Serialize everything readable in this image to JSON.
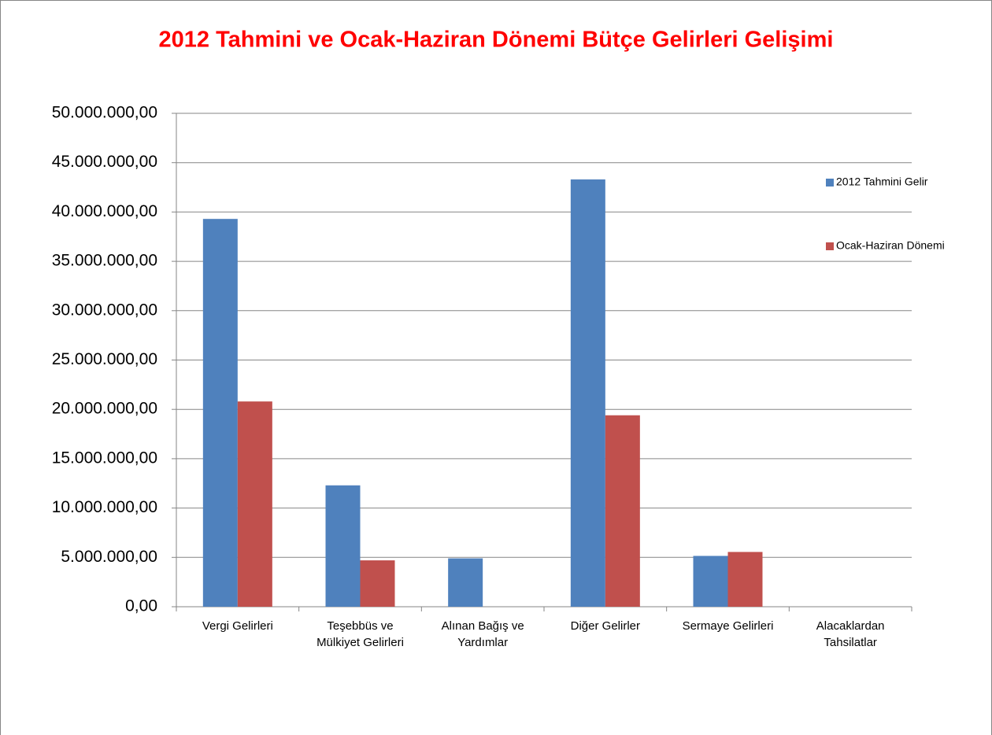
{
  "chart_data": {
    "type": "bar",
    "title": "2012 Tahmini  ve Ocak-Haziran Dönemi Bütçe Gelirleri Gelişimi",
    "categories": [
      [
        "Vergi Gelirleri"
      ],
      [
        "Teşebbüs ve",
        "Mülkiyet Gelirleri"
      ],
      [
        "Alınan Bağış ve",
        "Yardımlar"
      ],
      [
        "Diğer Gelirler"
      ],
      [
        "Sermaye Gelirleri"
      ],
      [
        "Alacaklardan",
        "Tahsilatlar"
      ]
    ],
    "series": [
      {
        "name": "2012 Tahmini Gelir",
        "color": "#4f81bd",
        "values": [
          39300000,
          12300000,
          4900000,
          43300000,
          5150000,
          0
        ]
      },
      {
        "name": "Ocak-Haziran Dönemi",
        "color": "#c0504d",
        "values": [
          20800000,
          4700000,
          0,
          19400000,
          5550000,
          0
        ]
      }
    ],
    "ylim": [
      0,
      50000000
    ],
    "yticks": [
      {
        "value": 0,
        "label": "0,00"
      },
      {
        "value": 5000000,
        "label": "5.000.000,00"
      },
      {
        "value": 10000000,
        "label": "10.000.000,00"
      },
      {
        "value": 15000000,
        "label": "15.000.000,00"
      },
      {
        "value": 20000000,
        "label": "20.000.000,00"
      },
      {
        "value": 25000000,
        "label": "25.000.000,00"
      },
      {
        "value": 30000000,
        "label": "30.000.000,00"
      },
      {
        "value": 35000000,
        "label": "35.000.000,00"
      },
      {
        "value": 40000000,
        "label": "40.000.000,00"
      },
      {
        "value": 45000000,
        "label": "45.000.000,00"
      },
      {
        "value": 50000000,
        "label": "50.000.000,00"
      }
    ],
    "grid": true,
    "legend": "right"
  }
}
